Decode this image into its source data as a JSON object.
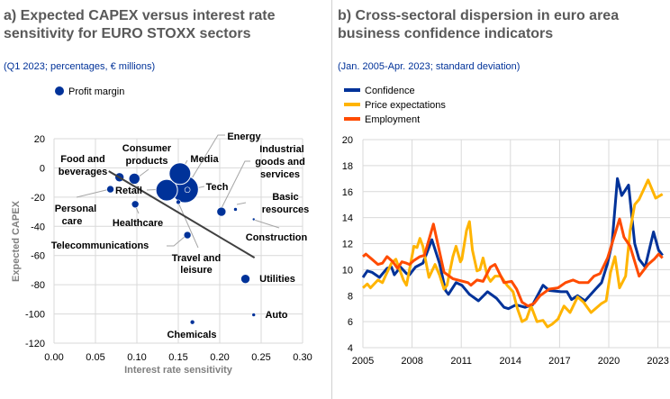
{
  "colors": {
    "blue": "#003299",
    "yellow": "#FFB400",
    "orange": "#FF4B00",
    "grid": "#d9d9d9",
    "title": "#595959"
  },
  "chart_data": [
    {
      "type": "scatter",
      "title": "a) Expected CAPEX versus interest rate sensitivity for EURO STOXX sectors",
      "subtitle": "(Q1 2023; percentages, € millions)",
      "xlabel": "Interest rate sensitivity",
      "ylabel": "Expected CAPEX",
      "xlim": [
        0,
        0.3
      ],
      "ylim": [
        -120,
        20
      ],
      "xticks": [
        "0.00",
        "0.05",
        "0.10",
        "0.15",
        "0.20",
        "0.25",
        "0.30"
      ],
      "yticks": [
        "20",
        "0",
        "-20",
        "-40",
        "-60",
        "-80",
        "-100",
        "-120"
      ],
      "grid": true,
      "legend": {
        "label": "Profit margin",
        "placement": "top-left"
      },
      "points": [
        {
          "name": "Food and beverages",
          "x": 0.079,
          "y": -6.4,
          "size": 5
        },
        {
          "name": "Consumer products",
          "x": 0.097,
          "y": -7.4,
          "size": 6
        },
        {
          "name": "Personal care",
          "x": 0.068,
          "y": -14.6,
          "size": 4
        },
        {
          "name": "Retail",
          "x": 0.136,
          "y": -15.2,
          "size": 12
        },
        {
          "name": "Media",
          "x": 0.152,
          "y": -3.9,
          "size": 12
        },
        {
          "name": "Energy",
          "x": 0.158,
          "y": -14.6,
          "size": 15
        },
        {
          "name": "Tech",
          "x": 0.161,
          "y": -15.0,
          "size": 3
        },
        {
          "name": "Travel and leisure",
          "x": 0.15,
          "y": -23.4,
          "size": 2.5
        },
        {
          "name": "Healthcare",
          "x": 0.098,
          "y": -24.9,
          "size": 4
        },
        {
          "name": "Industrial goods and services",
          "x": 0.202,
          "y": -30,
          "size": 5
        },
        {
          "name": "Basic resources",
          "x": 0.219,
          "y": -28.4,
          "size": 2
        },
        {
          "name": "Construction",
          "x": 0.241,
          "y": -35.2,
          "size": 1.5
        },
        {
          "name": "Telecommunications",
          "x": 0.161,
          "y": -46,
          "size": 4
        },
        {
          "name": "Utilities",
          "x": 0.231,
          "y": -76,
          "size": 5
        },
        {
          "name": "Auto",
          "x": 0.241,
          "y": -100.6,
          "size": 2
        },
        {
          "name": "Chemicals",
          "x": 0.167,
          "y": -105.6,
          "size": 2.5
        }
      ],
      "trendline": [
        {
          "x": 0.066,
          "y": -2.2
        },
        {
          "x": 0.242,
          "y": -61.5
        }
      ]
    },
    {
      "type": "line",
      "title": "b) Cross-sectoral dispersion in euro area business confidence indicators",
      "subtitle": "(Jan. 2005-Apr. 2023; standard deviation)",
      "xlim": [
        2005,
        2023.3
      ],
      "ylim": [
        4,
        20
      ],
      "xticks": [
        "2005",
        "2008",
        "2011",
        "2014",
        "2017",
        "2020",
        "2023"
      ],
      "yticks": [
        "20",
        "18",
        "16",
        "14",
        "12",
        "10",
        "8",
        "6",
        "4"
      ],
      "grid": true,
      "legend_placement": "top-left",
      "series": [
        {
          "name": "Confidence",
          "color": "#003299",
          "points": [
            [
              2005,
              9.4
            ],
            [
              2005.27,
              9.9
            ],
            [
              2005.55,
              9.8
            ],
            [
              2006.01,
              9.4
            ],
            [
              2006.47,
              10.1
            ],
            [
              2006.74,
              10.2
            ],
            [
              2006.92,
              9.6
            ],
            [
              2007.29,
              10.2
            ],
            [
              2007.66,
              9.7
            ],
            [
              2007.84,
              9.6
            ],
            [
              2008.21,
              10.2
            ],
            [
              2008.66,
              10.5
            ],
            [
              2009.21,
              12.3
            ],
            [
              2009.67,
              10.5
            ],
            [
              2010.04,
              8.4
            ],
            [
              2010.22,
              8.1
            ],
            [
              2010.68,
              9.0
            ],
            [
              2011.04,
              8.8
            ],
            [
              2011.5,
              8.1
            ],
            [
              2012.05,
              7.6
            ],
            [
              2012.6,
              8.3
            ],
            [
              2013.15,
              7.8
            ],
            [
              2013.61,
              7.1
            ],
            [
              2013.88,
              7.0
            ],
            [
              2014.34,
              7.3
            ],
            [
              2014.89,
              7.1
            ],
            [
              2015.35,
              7.3
            ],
            [
              2015.99,
              8.8
            ],
            [
              2016.36,
              8.4
            ],
            [
              2017.09,
              8.3
            ],
            [
              2017.45,
              8.3
            ],
            [
              2017.73,
              7.7
            ],
            [
              2018.1,
              8.0
            ],
            [
              2018.55,
              7.6
            ],
            [
              2019.19,
              8.5
            ],
            [
              2019.56,
              9.0
            ],
            [
              2019.93,
              10.5
            ],
            [
              2020.2,
              12
            ],
            [
              2020.53,
              17
            ],
            [
              2020.79,
              15.7
            ],
            [
              2021.21,
              16.5
            ],
            [
              2021.58,
              12
            ],
            [
              2021.85,
              10.8
            ],
            [
              2022.22,
              10.2
            ],
            [
              2022.73,
              12.9
            ],
            [
              2023.04,
              11.5
            ],
            [
              2023.28,
              11.1
            ]
          ]
        },
        {
          "name": "Price expectations",
          "color": "#FFB400",
          "points": [
            [
              2005,
              8.6
            ],
            [
              2005.27,
              8.9
            ],
            [
              2005.46,
              8.6
            ],
            [
              2005.92,
              9.2
            ],
            [
              2006.19,
              9.0
            ],
            [
              2006.37,
              9.5
            ],
            [
              2006.74,
              10.5
            ],
            [
              2007.01,
              10.8
            ],
            [
              2007.47,
              9.2
            ],
            [
              2007.66,
              8.8
            ],
            [
              2007.84,
              10.0
            ],
            [
              2008.11,
              11.8
            ],
            [
              2008.3,
              11.7
            ],
            [
              2008.48,
              12.4
            ],
            [
              2008.66,
              11.8
            ],
            [
              2009.03,
              9.4
            ],
            [
              2009.4,
              10.4
            ],
            [
              2009.67,
              9.6
            ],
            [
              2009.95,
              8.5
            ],
            [
              2010.13,
              8.8
            ],
            [
              2010.49,
              11.0
            ],
            [
              2010.68,
              11.8
            ],
            [
              2010.95,
              10.6
            ],
            [
              2011.04,
              10.8
            ],
            [
              2011.32,
              13.0
            ],
            [
              2011.5,
              13.7
            ],
            [
              2011.68,
              11.5
            ],
            [
              2011.96,
              9.9
            ],
            [
              2012.14,
              10.0
            ],
            [
              2012.33,
              10.9
            ],
            [
              2012.6,
              9.5
            ],
            [
              2012.78,
              9.1
            ],
            [
              2013.06,
              9.5
            ],
            [
              2013.42,
              9.5
            ],
            [
              2013.79,
              8.8
            ],
            [
              2014.16,
              8.3
            ],
            [
              2014.43,
              7.0
            ],
            [
              2014.71,
              6.0
            ],
            [
              2014.98,
              6.2
            ],
            [
              2015.26,
              7.2
            ],
            [
              2015.62,
              6.0
            ],
            [
              2015.99,
              6.1
            ],
            [
              2016.26,
              5.6
            ],
            [
              2016.54,
              5.8
            ],
            [
              2016.9,
              6.2
            ],
            [
              2017.27,
              7.2
            ],
            [
              2017.64,
              6.7
            ],
            [
              2018.1,
              7.9
            ],
            [
              2018.46,
              7.5
            ],
            [
              2018.92,
              6.7
            ],
            [
              2019.56,
              7.4
            ],
            [
              2019.84,
              7.6
            ],
            [
              2020.11,
              9.8
            ],
            [
              2020.38,
              11.0
            ],
            [
              2020.66,
              8.6
            ],
            [
              2021.03,
              9.5
            ],
            [
              2021.3,
              13
            ],
            [
              2021.58,
              15
            ],
            [
              2021.85,
              15.4
            ],
            [
              2022.4,
              16.9
            ],
            [
              2022.86,
              15.5
            ],
            [
              2023.28,
              15.8
            ]
          ]
        },
        {
          "name": "Employment",
          "color": "#FF4B00",
          "points": [
            [
              2005,
              11.0
            ],
            [
              2005.18,
              11.2
            ],
            [
              2005.55,
              10.8
            ],
            [
              2005.92,
              10.4
            ],
            [
              2006.19,
              10.5
            ],
            [
              2006.47,
              11.0
            ],
            [
              2006.83,
              10.6
            ],
            [
              2007.11,
              10.1
            ],
            [
              2007.38,
              10.6
            ],
            [
              2007.66,
              10.5
            ],
            [
              2007.84,
              10.4
            ],
            [
              2008.11,
              10.7
            ],
            [
              2008.48,
              11.0
            ],
            [
              2008.75,
              11.1
            ],
            [
              2009.3,
              13.5
            ],
            [
              2009.95,
              9.8
            ],
            [
              2010.49,
              9.3
            ],
            [
              2011.41,
              9.0
            ],
            [
              2011.59,
              8.8
            ],
            [
              2011.96,
              9.2
            ],
            [
              2012.33,
              9.1
            ],
            [
              2012.78,
              10.2
            ],
            [
              2013.06,
              10.4
            ],
            [
              2013.61,
              9.0
            ],
            [
              2014.07,
              9.1
            ],
            [
              2014.38,
              8.5
            ],
            [
              2014.71,
              7.5
            ],
            [
              2015.07,
              7.2
            ],
            [
              2015.44,
              7.4
            ],
            [
              2015.81,
              8.0
            ],
            [
              2016.36,
              8.5
            ],
            [
              2016.9,
              8.6
            ],
            [
              2017.36,
              9.0
            ],
            [
              2017.82,
              9.2
            ],
            [
              2018.19,
              9.0
            ],
            [
              2018.74,
              9.0
            ],
            [
              2019.1,
              9.5
            ],
            [
              2019.47,
              9.7
            ],
            [
              2019.93,
              10.9
            ],
            [
              2020.66,
              13.9
            ],
            [
              2020.93,
              12.5
            ],
            [
              2021.3,
              11.8
            ],
            [
              2021.85,
              9.5
            ],
            [
              2022.4,
              10.4
            ],
            [
              2022.77,
              10.8
            ],
            [
              2023.04,
              11.2
            ],
            [
              2023.28,
              10.9
            ]
          ]
        }
      ]
    }
  ]
}
